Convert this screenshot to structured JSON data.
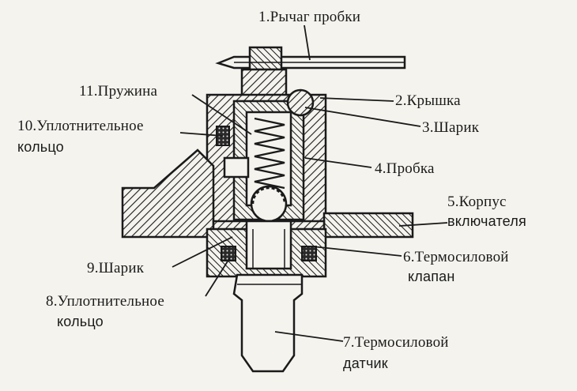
{
  "labels": {
    "l1": "1.Рычаг пробки",
    "l2": "2.Крышка",
    "l3": "3.Шарик",
    "l4": "4.Пробка",
    "l5a": "5.Корпус",
    "l5b": "включателя",
    "l6a": "6.Термосиловой",
    "l6b": "клапан",
    "l7a": "7.Термосиловой",
    "l7b": "датчик",
    "l8a": "8.Уплотнительное",
    "l8b": "кольцо",
    "l9": "9.Шарик",
    "l10a": "10.Уплотнительное",
    "l10b": "кольцо",
    "l11": "11.Пружина"
  },
  "colors": {
    "ink": "#1a1a1a",
    "paper": "#f4f3ee"
  }
}
